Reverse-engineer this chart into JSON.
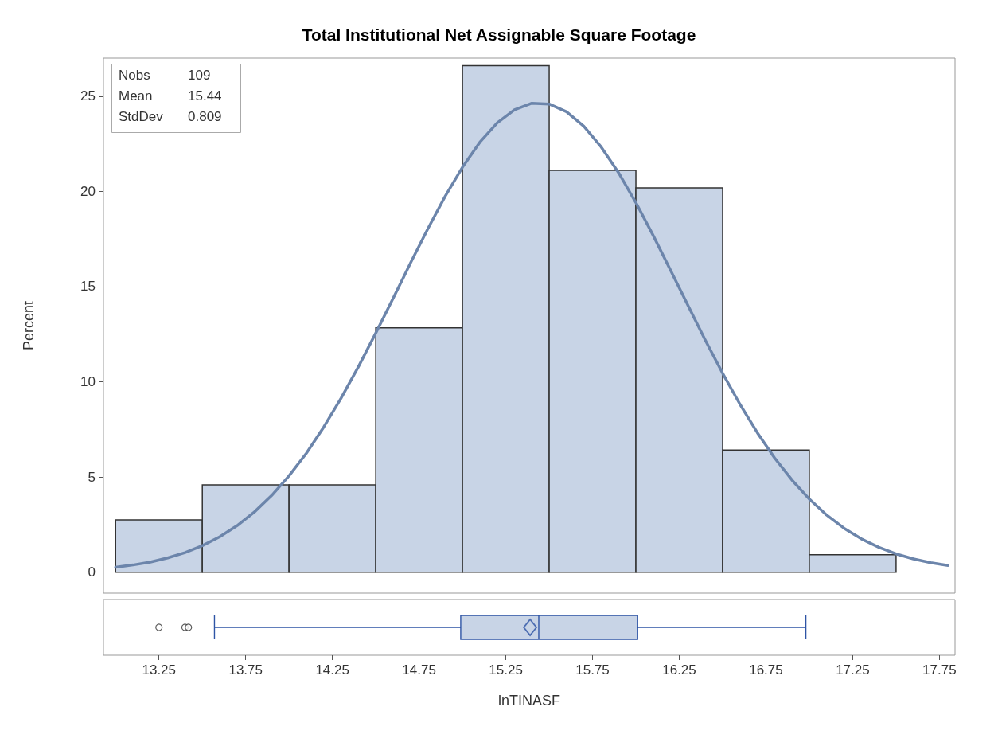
{
  "chart_data": [
    {
      "type": "histogram",
      "title": "Total Institutional Net Assignable Square Footage",
      "ylabel": "Percent",
      "annotations": [
        "Nobs 109",
        "Mean 15.44",
        "StdDev 0.809"
      ],
      "bins": [
        13,
        13.5,
        14,
        14.5,
        15,
        15.5,
        16,
        16.5,
        17,
        17.5
      ],
      "series": [
        {
          "type": "histogram",
          "color": "#c8d4e6",
          "values": [
            2.75,
            4.59,
            4.59,
            12.84,
            26.6,
            21.1,
            20.18,
            6.42,
            0.92
          ]
        },
        {
          "type": "line",
          "color": "#6c85ab",
          "x": [
            13,
            13.1,
            13.2,
            13.3,
            13.4,
            13.5,
            13.6,
            13.7,
            13.8,
            13.9,
            14,
            14.1,
            14.2,
            14.3,
            14.4,
            14.5,
            14.6,
            14.7,
            14.8,
            14.9,
            15,
            15.1,
            15.2,
            15.3,
            15.4,
            15.5,
            15.6,
            15.7,
            15.8,
            15.9,
            16,
            16.1,
            16.2,
            16.3,
            16.4,
            16.5,
            16.6,
            16.7,
            16.8,
            16.9,
            17,
            17.1,
            17.2,
            17.3,
            17.4,
            17.5,
            17.6,
            17.7,
            17.8
          ],
          "values": [
            0.26,
            0.38,
            0.53,
            0.75,
            1.03,
            1.39,
            1.86,
            2.44,
            3.16,
            4.03,
            5.06,
            6.25,
            7.62,
            9.14,
            10.79,
            12.56,
            14.38,
            16.23,
            18.03,
            19.74,
            21.27,
            22.58,
            23.6,
            24.29,
            24.63,
            24.59,
            24.18,
            23.42,
            22.33,
            20.98,
            19.41,
            17.68,
            15.86,
            14.02,
            12.19,
            10.45,
            8.82,
            7.33,
            6,
            4.84,
            3.84,
            3,
            2.31,
            1.75,
            1.31,
            0.96,
            0.7,
            0.5,
            0.35
          ]
        }
      ],
      "xlim": [
        12.93,
        17.84
      ],
      "ylim": [
        -1.1,
        27
      ],
      "yticks": [
        0,
        5,
        10,
        15,
        20,
        25
      ],
      "tick_labels": "y"
    },
    {
      "type": "box",
      "xlabel": "lnTINASF",
      "orientation": "horizontal",
      "categories": [
        null
      ],
      "color": "#c8d4e6",
      "boxes": [
        {
          "low": 13.57,
          "q1": 14.99,
          "median": 15.44,
          "q3": 16.01,
          "high": 16.98,
          "mean": 15.39,
          "outliers": [
            13.25,
            13.4,
            13.42
          ]
        }
      ],
      "xlim": [
        12.93,
        17.84
      ],
      "xticks": [
        13.25,
        13.75,
        14.25,
        14.75,
        15.25,
        15.75,
        16.25,
        16.75,
        17.25,
        17.75
      ],
      "tick_labels": "x"
    }
  ]
}
